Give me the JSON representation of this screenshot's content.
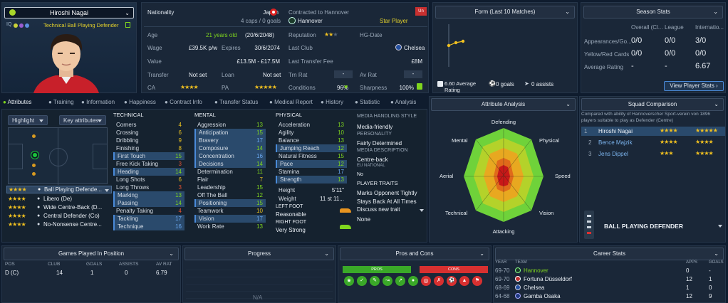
{
  "profile": {
    "name": "Hiroshi Nagai",
    "role": "Technical Ball Playing Defender",
    "iq": "IQ"
  },
  "overview": {
    "nationality_label": "Nationality",
    "nationality": "Japan",
    "caps": "4 caps / 0 goals",
    "contract": "Contracted to Hannover",
    "club": "Hannover",
    "badge": "Star Player",
    "badge_tag": "Un",
    "age_label": "Age",
    "age": "21 years old",
    "dob": "(20/6/2048)",
    "wage_label": "Wage",
    "wage": "£39.5K p/w",
    "expires_label": "Expires",
    "expires": "30/6/2074",
    "value_label": "Value",
    "value": "£13.5M - £17.5M",
    "transfer_label": "Transfer",
    "transfer": "Not set",
    "loan_label": "Loan",
    "loan": "Not set",
    "ca_label": "CA",
    "pa_label": "PA",
    "reputation_label": "Reputation",
    "hgdate_label": "HG-Date",
    "lastclub_label": "Last Club",
    "lastclub": "Chelsea",
    "lastfee_label": "Last Transfer Fee",
    "lastfee": "£8M",
    "trnrat_label": "Trn Rat",
    "trnrat": "-",
    "avrat_label": "Av Rat",
    "avrat": "-",
    "conditions_label": "Conditions",
    "conditions": "96%",
    "sharpness_label": "Sharpness",
    "sharpness": "100%"
  },
  "form": {
    "title": "Form (Last 10 Matches)",
    "avg": "6.60 Average Rating",
    "goals": "0 goals",
    "assists": "0 assists"
  },
  "season": {
    "title": "Season Stats",
    "cols": [
      "Overall (Cl...",
      "League",
      "Internatio..."
    ],
    "rows": [
      {
        "label": "Appearances/Go...",
        "vals": [
          "0/0",
          "0/0",
          "3/0"
        ]
      },
      {
        "label": "Yellow/Red Cards",
        "vals": [
          "0/0",
          "0/0",
          "0/0"
        ]
      },
      {
        "label": "Average Rating",
        "vals": [
          "-",
          "-",
          "6.67"
        ]
      }
    ],
    "button": "View Player Stats"
  },
  "tabs": [
    "Attributes",
    "Training",
    "Information",
    "Happiness",
    "Contract Info",
    "Transfer Status",
    "Medical Report",
    "History",
    "Statistic",
    "Analysis"
  ],
  "attrs_ctrl": {
    "highlight": "Highlight",
    "key": "Key attributes"
  },
  "roles": [
    {
      "name": "Ball Playing Defende...",
      "stars": "★★★★"
    },
    {
      "name": "Libero (De)",
      "stars": "★★★★"
    },
    {
      "name": "Wide Centre-Back (D...",
      "stars": "★★★★"
    },
    {
      "name": "Central Defender (Co)",
      "stars": "★★★★"
    },
    {
      "name": "No-Nonsense Centre...",
      "stars": "★★★★"
    }
  ],
  "technical": {
    "title": "TECHNICAL",
    "items": [
      [
        "Corners",
        "4"
      ],
      [
        "Crossing",
        "6"
      ],
      [
        "Dribbling",
        "9"
      ],
      [
        "Finishing",
        "8"
      ],
      [
        "First Touch",
        "15"
      ],
      [
        "Free Kick Taking",
        "3"
      ],
      [
        "Heading",
        "14"
      ],
      [
        "Long Shots",
        "6"
      ],
      [
        "Long Throws",
        "3"
      ],
      [
        "Marking",
        "13"
      ],
      [
        "Passing",
        "14"
      ],
      [
        "Penalty Taking",
        "4"
      ],
      [
        "Tackling",
        "17"
      ],
      [
        "Technique",
        "16"
      ]
    ]
  },
  "mental": {
    "title": "MENTAL",
    "items": [
      [
        "Aggression",
        "13"
      ],
      [
        "Anticipation",
        "15"
      ],
      [
        "Bravery",
        "17"
      ],
      [
        "Composure",
        "14"
      ],
      [
        "Concentration",
        "16"
      ],
      [
        "Decisions",
        "14"
      ],
      [
        "Determination",
        "11"
      ],
      [
        "Flair",
        "7"
      ],
      [
        "Leadership",
        "15"
      ],
      [
        "Off The Ball",
        "12"
      ],
      [
        "Positioning",
        "15"
      ],
      [
        "Teamwork",
        "10"
      ],
      [
        "Vision",
        "17"
      ],
      [
        "Work Rate",
        "13"
      ]
    ]
  },
  "physical": {
    "title": "PHYSICAL",
    "items": [
      [
        "Acceleration",
        "13"
      ],
      [
        "Agility",
        "10"
      ],
      [
        "Balance",
        "13"
      ],
      [
        "Jumping Reach",
        "12"
      ],
      [
        "Natural Fitness",
        "15"
      ],
      [
        "Pace",
        "12"
      ],
      [
        "Stamina",
        "17"
      ],
      [
        "Strength",
        "13"
      ]
    ],
    "height_label": "Height",
    "height": "5'11\"",
    "weight_label": "Weight",
    "weight": "11 st 11...",
    "leftfoot_label": "LEFT FOOT",
    "leftfoot": "Reasonable",
    "rightfoot_label": "RIGHT FOOT",
    "rightfoot": "Very Strong"
  },
  "media": {
    "style_title": "MEDIA HANDLING STYLE",
    "style": "Media-friendly",
    "pers_title": "PERSONALITY",
    "pers": "Fairly Determined",
    "desc_title": "MEDIA DESCRIPTION",
    "desc": "Centre-back",
    "nat_title": "EU NATIONAL",
    "nat": "No",
    "traits_title": "PLAYER TRAITS",
    "traits": [
      "Marks Opponent Tightly",
      "Stays Back At All Times"
    ],
    "discuss": "Discuss new trait",
    "none": "None"
  },
  "analysis": {
    "title": "Attribute Analysis",
    "labels": [
      "Defending",
      "Physical",
      "Speed",
      "Vision",
      "Attacking",
      "Technical",
      "Aerial",
      "Mental"
    ]
  },
  "squad": {
    "title": "Squad Comparison",
    "desc": "Compared with ability of Hannoverscher Sport-verein von 1896 players suitable to play as Defender (Centre)",
    "rows": [
      {
        "rank": "1",
        "name": "Hiroshi Nagai",
        "ca": "★★★★",
        "pa": "★★★★★"
      },
      {
        "rank": "2",
        "name": "Bence Majzik",
        "ca": "★★★★",
        "pa": "★★★★"
      },
      {
        "rank": "3",
        "name": "Jens Dippel",
        "ca": "★★★",
        "pa": "★★★★"
      }
    ],
    "role": "BALL PLAYING DEFENDER"
  },
  "bottom": {
    "games_title": "Games Played In Position",
    "games_cols": [
      "POS",
      "CLUB",
      "GOALS",
      "ASSISTS",
      "AV RAT"
    ],
    "games_row": [
      "D (C)",
      "14",
      "1",
      "0",
      "6.79"
    ],
    "progress_title": "Progress",
    "progress_na": "N/A",
    "pros_title": "Pros and Cons",
    "pros": "PROS",
    "cons": "CONS",
    "career_title": "Career Stats",
    "career_cols": [
      "YEAR",
      "TEAM",
      "APPS",
      "GOALS"
    ],
    "career": [
      [
        "69-70",
        "Hannover",
        "0",
        "-"
      ],
      [
        "69-70",
        "Fortuna Düsseldorf",
        "12",
        "1"
      ],
      [
        "68-69",
        "Chelsea",
        "1",
        "0"
      ],
      [
        "64-68",
        "Gamba Osaka",
        "12",
        "9"
      ]
    ]
  },
  "colors": {
    "accent": "#7fd61e",
    "star": "#f0c020",
    "panel": "#1a2738",
    "highlight": "#2a4a6c"
  }
}
